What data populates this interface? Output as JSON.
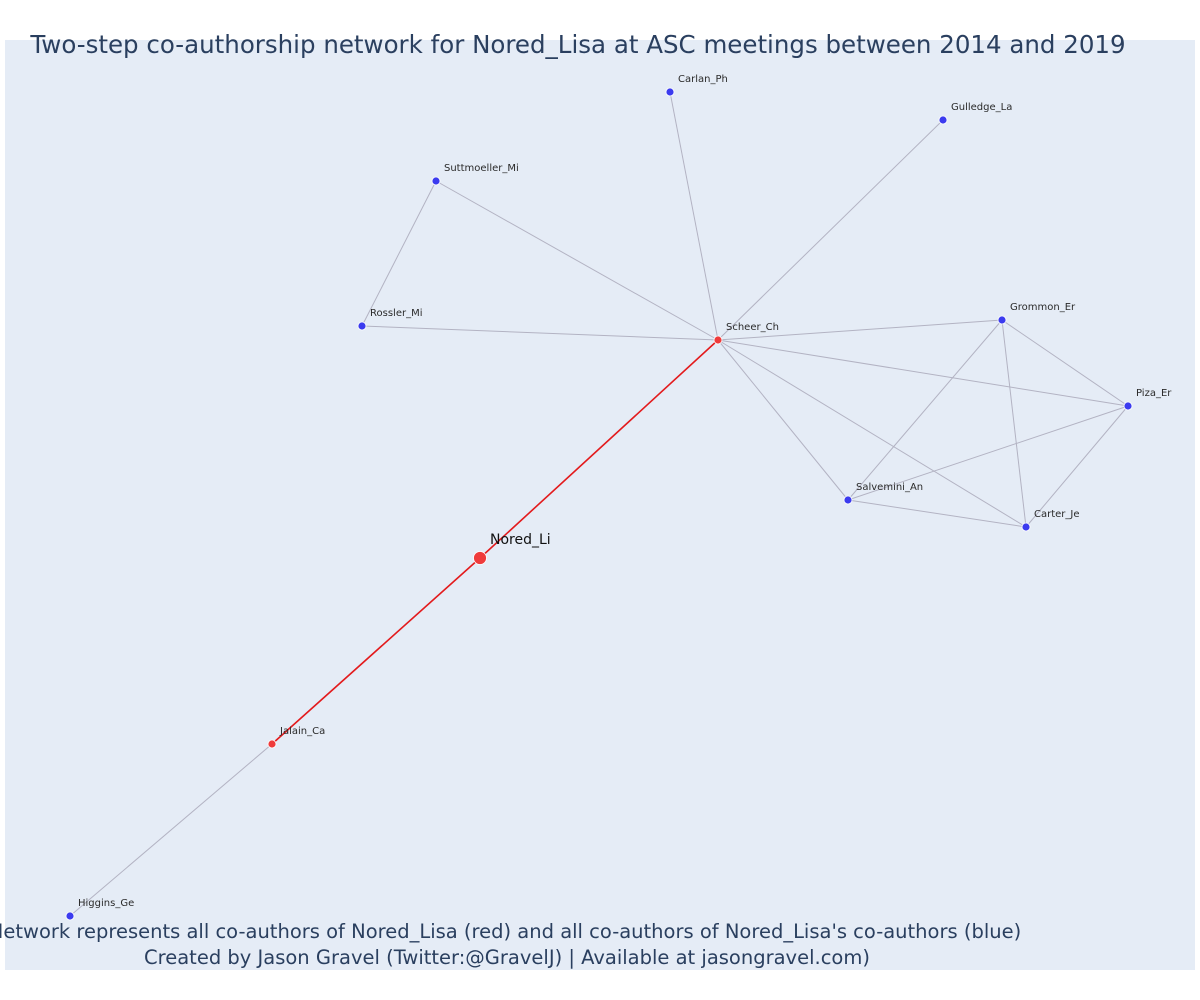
{
  "title": "Two-step co-authorship network for Nored_Lisa at ASC meetings between 2014 and 2019",
  "caption": {
    "line1": "Network represents all co-authors of Nored_Lisa (red) and all co-authors of Nored_Lisa's co-authors (blue)",
    "line2": "Created by Jason Gravel (Twitter:@GravelJ) | Available at jasongravel.com)"
  },
  "colors": {
    "background": "#e5ecf6",
    "first_degree": "#ef3b3b",
    "second_degree": "#3b3bef",
    "focal_edge": "#e31a1c",
    "other_edge": "#b3b3c3",
    "text": "#2a3f5f"
  },
  "nodes": [
    {
      "id": "Nored_Li",
      "label": "Nored_Li",
      "group": "focal"
    },
    {
      "id": "Scheer_Ch",
      "label": "Scheer_Ch",
      "group": "coauthor"
    },
    {
      "id": "Jalain_Ca",
      "label": "Jalain_Ca",
      "group": "coauthor"
    },
    {
      "id": "Carlan_Ph",
      "label": "Carlan_Ph",
      "group": "second"
    },
    {
      "id": "Gulledge_La",
      "label": "Gulledge_La",
      "group": "second"
    },
    {
      "id": "Suttmoeller_Mi",
      "label": "Suttmoeller_Mi",
      "group": "second"
    },
    {
      "id": "Rossler_Mi",
      "label": "Rossler_Mi",
      "group": "second"
    },
    {
      "id": "Grommon_Er",
      "label": "Grommon_Er",
      "group": "second"
    },
    {
      "id": "Piza_Er",
      "label": "Piza_Er",
      "group": "second"
    },
    {
      "id": "Salvemini_An",
      "label": "Salvemini_An",
      "group": "second"
    },
    {
      "id": "Carter_Je",
      "label": "Carter_Je",
      "group": "second"
    },
    {
      "id": "Higgins_Ge",
      "label": "Higgins_Ge",
      "group": "second"
    }
  ],
  "edges": [
    {
      "source": "Nored_Li",
      "target": "Scheer_Ch",
      "focal": true
    },
    {
      "source": "Nored_Li",
      "target": "Jalain_Ca",
      "focal": true
    },
    {
      "source": "Jalain_Ca",
      "target": "Higgins_Ge",
      "focal": false
    },
    {
      "source": "Scheer_Ch",
      "target": "Carlan_Ph",
      "focal": false
    },
    {
      "source": "Scheer_Ch",
      "target": "Gulledge_La",
      "focal": false
    },
    {
      "source": "Scheer_Ch",
      "target": "Suttmoeller_Mi",
      "focal": false
    },
    {
      "source": "Scheer_Ch",
      "target": "Rossler_Mi",
      "focal": false
    },
    {
      "source": "Scheer_Ch",
      "target": "Grommon_Er",
      "focal": false
    },
    {
      "source": "Scheer_Ch",
      "target": "Piza_Er",
      "focal": false
    },
    {
      "source": "Scheer_Ch",
      "target": "Salvemini_An",
      "focal": false
    },
    {
      "source": "Scheer_Ch",
      "target": "Carter_Je",
      "focal": false
    },
    {
      "source": "Suttmoeller_Mi",
      "target": "Rossler_Mi",
      "focal": false
    },
    {
      "source": "Grommon_Er",
      "target": "Piza_Er",
      "focal": false
    },
    {
      "source": "Grommon_Er",
      "target": "Salvemini_An",
      "focal": false
    },
    {
      "source": "Grommon_Er",
      "target": "Carter_Je",
      "focal": false
    },
    {
      "source": "Piza_Er",
      "target": "Salvemini_An",
      "focal": false
    },
    {
      "source": "Piza_Er",
      "target": "Carter_Je",
      "focal": false
    },
    {
      "source": "Salvemini_An",
      "target": "Carter_Je",
      "focal": false
    }
  ]
}
